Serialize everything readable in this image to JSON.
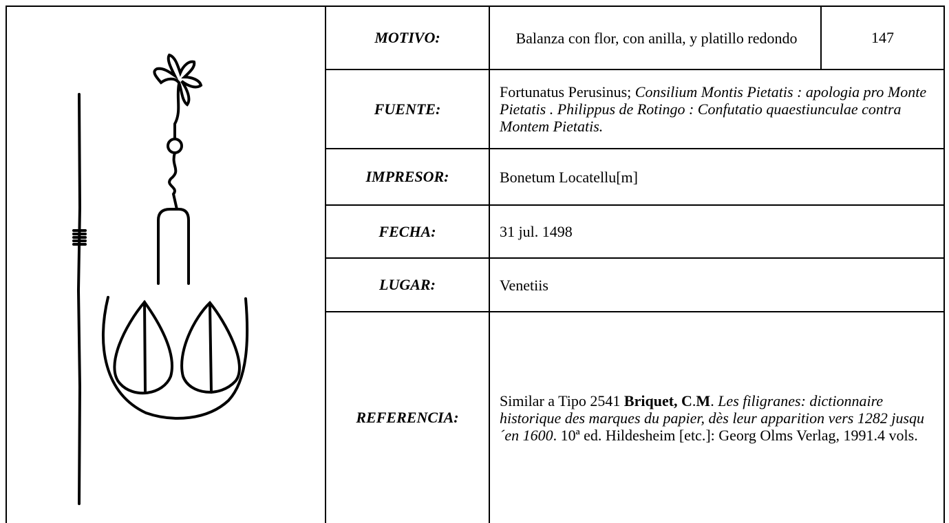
{
  "table": {
    "rows": [
      {
        "label": "MOTIVO:",
        "value": [
          {
            "text": "Balanza con flor, con anilla, y platillo redondo",
            "style": "normal"
          }
        ],
        "number": "147"
      },
      {
        "label": "FUENTE:",
        "value": [
          {
            "text": "Fortunatus Perusinus; ",
            "style": "normal"
          },
          {
            "text": "Consilium Montis Pietatis : apologia pro Monte Pietatis . Philippus de Rotingo : Confutatio quaestiunculae contra Montem Pietatis.",
            "style": "italic"
          }
        ]
      },
      {
        "label": "IMPRESOR:",
        "value": [
          {
            "text": "Bonetum Locatellu[m]",
            "style": "normal"
          }
        ]
      },
      {
        "label": "FECHA:",
        "value": [
          {
            "text": "31 jul. 1498",
            "style": "normal"
          }
        ]
      },
      {
        "label": "LUGAR:",
        "value": [
          {
            "text": "Venetiis",
            "style": "normal"
          }
        ]
      },
      {
        "label": "REFERENCIA:",
        "value": [
          {
            "text": "Similar a Tipo 2541 ",
            "style": "normal"
          },
          {
            "text": "Briquet, C",
            "style": "bold"
          },
          {
            "text": ".",
            "style": "normal"
          },
          {
            "text": "M",
            "style": "bold"
          },
          {
            "text": ". ",
            "style": "normal"
          },
          {
            "text": "Les filigranes: dictionnaire historique des marques du papier, dès leur apparition vers 1282 jusqu´en 1600",
            "style": "italic"
          },
          {
            "text": ". 10ª ed. Hildesheim [etc.]: Georg Olms Verlag, 1991.4 vols.",
            "style": "normal"
          }
        ]
      }
    ]
  }
}
